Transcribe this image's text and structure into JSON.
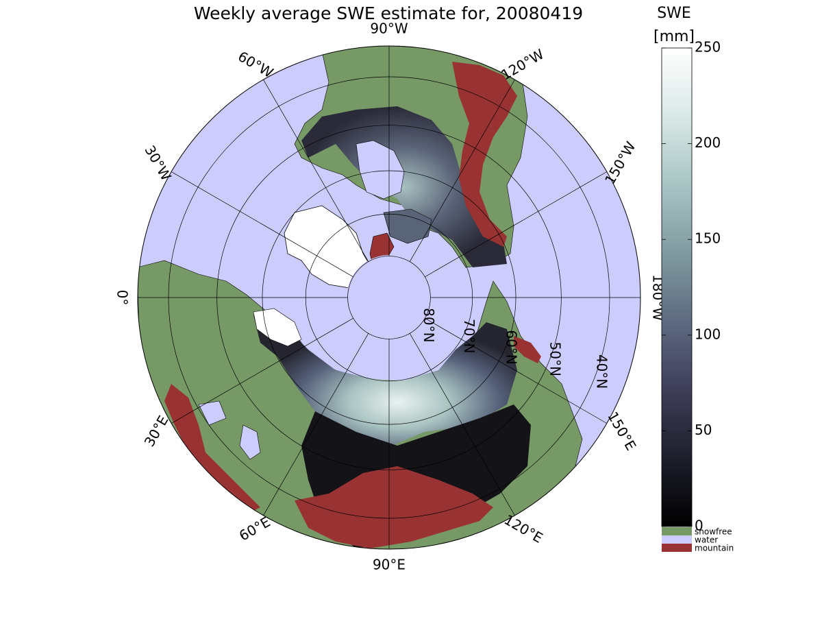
{
  "title": "Weekly average SWE estimate for, 20080419",
  "colorbar": {
    "label_line1": "SWE",
    "label_line2": "[mm]",
    "ticks": [
      0,
      50,
      100,
      150,
      200,
      250
    ],
    "range": [
      0,
      250
    ],
    "gradient": [
      "#000000",
      "#1e1e2c",
      "#3e3e58",
      "#5e6a80",
      "#809aa0",
      "#a8c4c4",
      "#d8e8e6",
      "#ffffff"
    ],
    "categories": [
      {
        "name": "snowfree",
        "color": "#779966"
      },
      {
        "name": "water",
        "color": "#ccccff"
      },
      {
        "name": "mountain",
        "color": "#993333"
      }
    ]
  },
  "map": {
    "projection": "north polar stereographic",
    "latitude_circles": [
      {
        "lat": 80,
        "label": "80°N"
      },
      {
        "lat": 70,
        "label": "70°N"
      },
      {
        "lat": 60,
        "label": "60°N"
      },
      {
        "lat": 50,
        "label": "50°N"
      },
      {
        "lat": 40,
        "label": "40°N"
      }
    ],
    "meridian_labels": [
      {
        "lon": -90,
        "label": "90°W"
      },
      {
        "lon": -120,
        "label": "120°W"
      },
      {
        "lon": -150,
        "label": "150°W"
      },
      {
        "lon": 180,
        "label": "180°W"
      },
      {
        "lon": 150,
        "label": "150°E"
      },
      {
        "lon": 120,
        "label": "120°E"
      },
      {
        "lon": 90,
        "label": "90°E"
      },
      {
        "lon": 60,
        "label": "60°E"
      },
      {
        "lon": 30,
        "label": "30°E"
      },
      {
        "lon": 0,
        "label": "0°"
      },
      {
        "lon": -30,
        "label": "30°W"
      },
      {
        "lon": -60,
        "label": "60°W"
      }
    ],
    "colors": {
      "water": "#ccccff",
      "snowfree": "#779966",
      "mountain": "#993333",
      "coast": "#000000"
    }
  }
}
